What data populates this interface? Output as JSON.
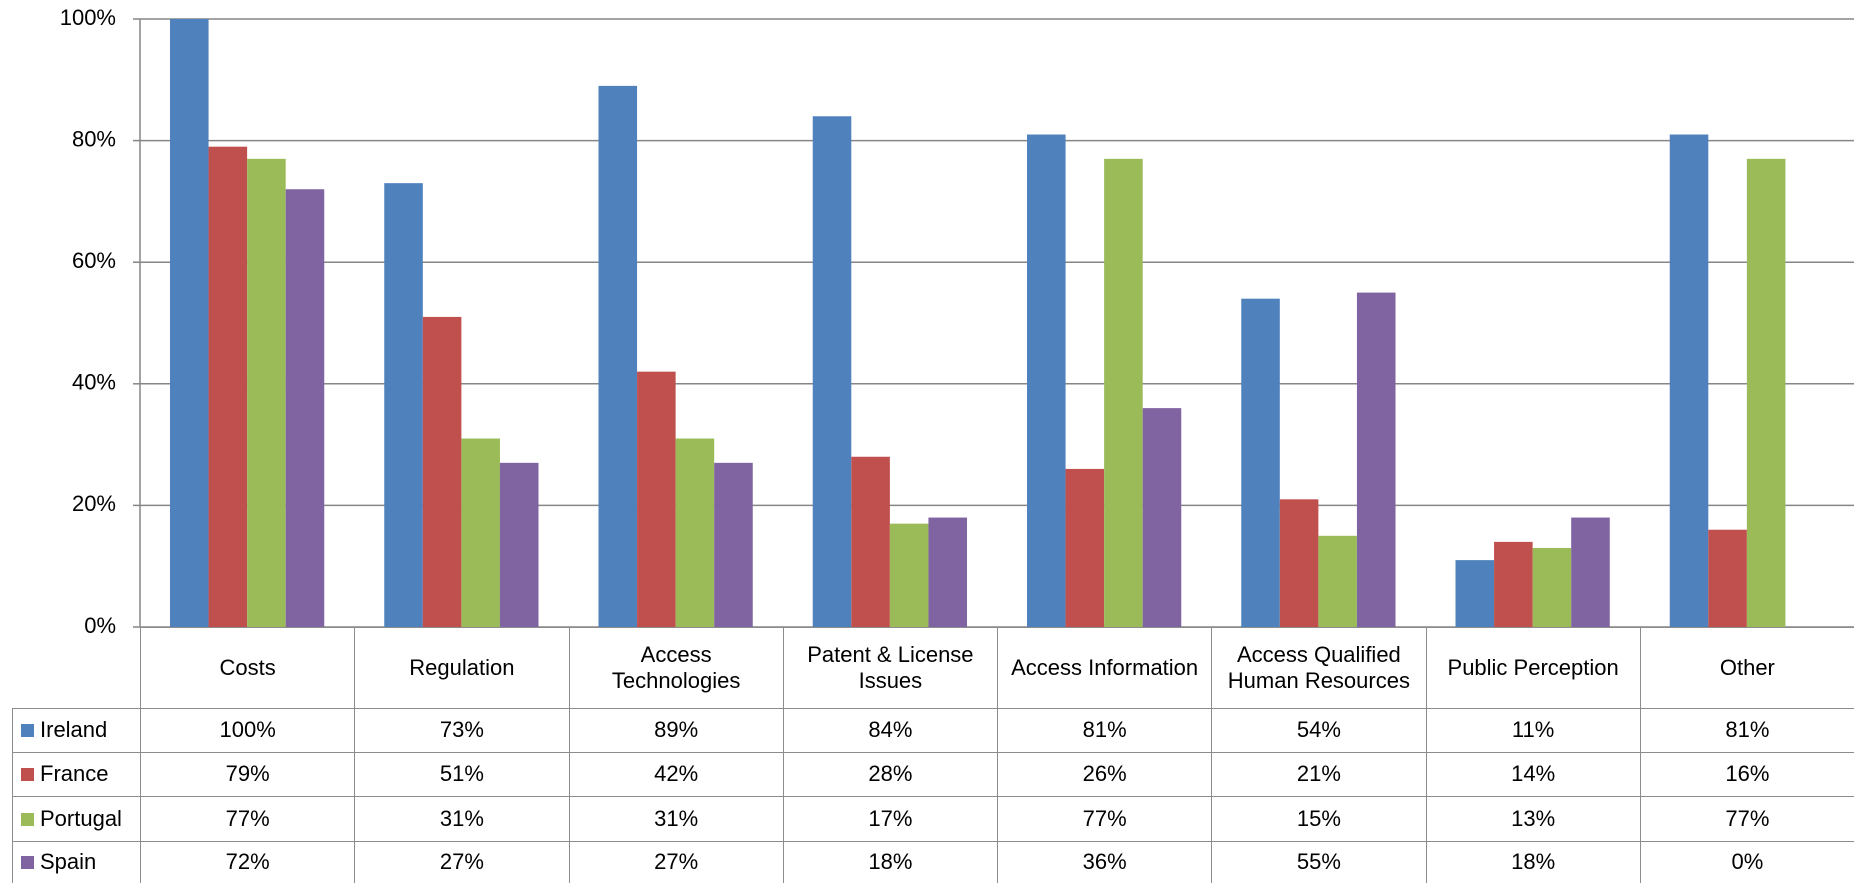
{
  "chart_data": {
    "type": "bar",
    "categories": [
      "Costs",
      "Regulation",
      "Access Technologies",
      "Patent & License Issues",
      "Access Information",
      "Access Qualified Human Resources",
      "Public Perception",
      "Other"
    ],
    "series": [
      {
        "name": "Ireland",
        "color": "#4f81bd",
        "values": [
          100,
          73,
          89,
          84,
          81,
          54,
          11,
          81
        ],
        "value_labels": [
          "100%",
          "73%",
          "89%",
          "84%",
          "81%",
          "54%",
          "11%",
          "81%"
        ]
      },
      {
        "name": "France",
        "color": "#c0504d",
        "values": [
          79,
          51,
          42,
          28,
          26,
          21,
          14,
          16
        ],
        "value_labels": [
          "79%",
          "51%",
          "42%",
          "28%",
          "26%",
          "21%",
          "14%",
          "16%"
        ]
      },
      {
        "name": "Portugal",
        "color": "#9bbb59",
        "values": [
          77,
          31,
          31,
          17,
          77,
          15,
          13,
          77
        ],
        "value_labels": [
          "77%",
          "31%",
          "31%",
          "17%",
          "77%",
          "15%",
          "13%",
          "77%"
        ]
      },
      {
        "name": "Spain",
        "color": "#8064a2",
        "values": [
          72,
          27,
          27,
          18,
          36,
          55,
          18,
          0
        ],
        "value_labels": [
          "72%",
          "27%",
          "27%",
          "18%",
          "36%",
          "55%",
          "18%",
          "0%"
        ]
      }
    ],
    "ylim": [
      0,
      100
    ],
    "yticks": [
      {
        "value": 0,
        "label": "0%"
      },
      {
        "value": 20,
        "label": "20%"
      },
      {
        "value": 40,
        "label": "40%"
      },
      {
        "value": 60,
        "label": "60%"
      },
      {
        "value": 80,
        "label": "80%"
      },
      {
        "value": 100,
        "label": "100%"
      }
    ],
    "grid": true
  }
}
